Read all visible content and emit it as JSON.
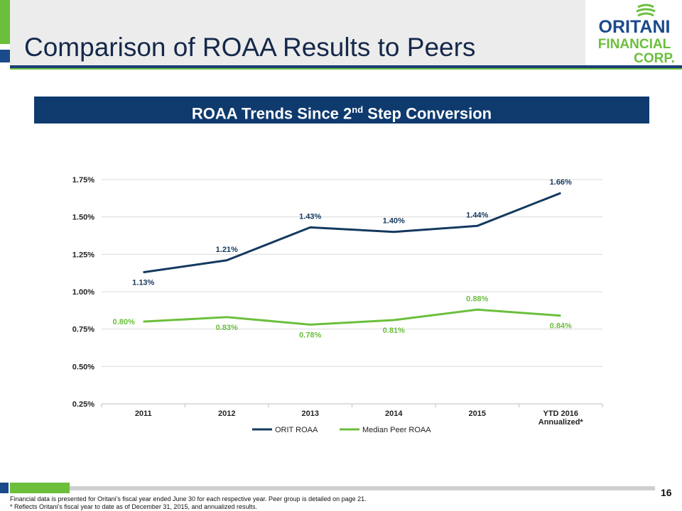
{
  "header": {
    "title": "Comparison of ROAA Results to Peers",
    "logo_line1": "ORITANI",
    "logo_line2": "FINANCIAL",
    "logo_line3": "CORP."
  },
  "banner": {
    "text_before": "ROAA Trends Since 2",
    "superscript": "nd",
    "text_after": " Step Conversion"
  },
  "colors": {
    "navy": "#14395f",
    "green": "#6bbf3b"
  },
  "chart_data": {
    "type": "line",
    "categories": [
      "2011",
      "2012",
      "2013",
      "2014",
      "2015",
      "YTD 2016 Annualized*"
    ],
    "category_lines": [
      [
        "2011"
      ],
      [
        "2012"
      ],
      [
        "2013"
      ],
      [
        "2014"
      ],
      [
        "2015"
      ],
      [
        "YTD 2016",
        "Annualized*"
      ]
    ],
    "series": [
      {
        "name": "ORIT ROAA",
        "values": [
          1.13,
          1.21,
          1.43,
          1.4,
          1.44,
          1.66
        ],
        "labels": [
          "1.13%",
          "1.21%",
          "1.43%",
          "1.40%",
          "1.44%",
          "1.66%"
        ],
        "color": "#14395f",
        "label_pos": [
          "below",
          "above",
          "above",
          "above",
          "above",
          "above"
        ]
      },
      {
        "name": "Median Peer ROAA",
        "values": [
          0.8,
          0.83,
          0.78,
          0.81,
          0.88,
          0.84
        ],
        "labels": [
          "0.80%",
          "0.83%",
          "0.78%",
          "0.81%",
          "0.88%",
          "0.84%"
        ],
        "color": "#6bbf3b",
        "label_pos": [
          "left",
          "below",
          "below",
          "below",
          "above",
          "below"
        ]
      }
    ],
    "yticks": [
      0.25,
      0.5,
      0.75,
      1.0,
      1.25,
      1.5,
      1.75
    ],
    "ytick_labels": [
      "0.25%",
      "0.50%",
      "0.75%",
      "1.00%",
      "1.25%",
      "1.50%",
      "1.75%"
    ],
    "ylim": [
      0.25,
      1.75
    ],
    "title": "",
    "xlabel": "",
    "ylabel": "",
    "legend": "bottom-center",
    "grid": true
  },
  "footer": {
    "page_number": "16",
    "note1": "Financial data is presented for Oritani’s fiscal year ended June 30 for each respective year. Peer group is detailed on page 21.",
    "note2": "* Reflects Oritani’s fiscal year to date as of December 31, 2015, and annualized results."
  }
}
